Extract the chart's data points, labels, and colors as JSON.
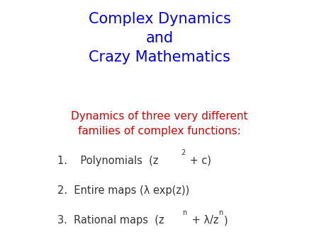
{
  "title_line1": "Complex Dynamics",
  "title_line2": "and",
  "title_line3": "Crazy Mathematics",
  "title_color": "#0000EE",
  "subtitle_line1": "Dynamics of three very different",
  "subtitle_line2": "families of complex functions:",
  "subtitle_color": "#DD0000",
  "item_color": "#333333",
  "background_color": "#FFFFFF",
  "title_fontsize": 15,
  "subtitle_fontsize": 11,
  "item_fontsize": 10.5,
  "super_fontsize": 7
}
